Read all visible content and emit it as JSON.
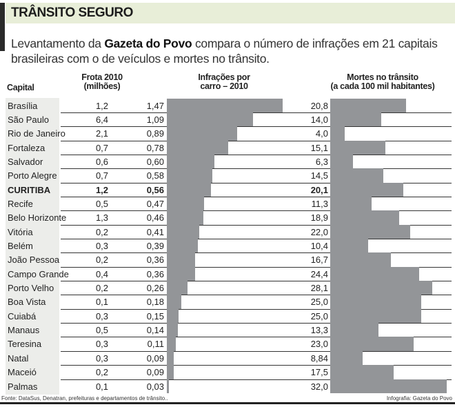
{
  "title": "TRÂNSITO SEGURO",
  "subtitle": {
    "pre": "Levantamento da ",
    "bold": "Gazeta do Povo",
    "post": " compara o número de infrações em 21 capitais brasileiras com o de veículos e mortes no trânsito."
  },
  "footer": {
    "source": "Fonte: DataSus, Denatran, prefeituras e departamentos de trânsito..",
    "credit": "Infografia: Gazeta do Povo"
  },
  "chart_data": {
    "type": "table",
    "columns": [
      "Capital",
      "Frota 2010 (milhões)",
      "Infrações por carro – 2010",
      "Mortes no trânsito (a cada 100 mil habitantes)"
    ],
    "headers": {
      "capital": "Capital",
      "frota1": "Frota 2010",
      "frota2": "(milhões)",
      "infr1": "Infrações por",
      "infr2": "carro – 2010",
      "mortes1": "Mortes no trânsito",
      "mortes2": "(a cada 100 mil habitantes)"
    },
    "highlight": "CURITIBA",
    "bar_color": "#939598",
    "rows": [
      [
        "Brasília",
        "1,2",
        "1,47",
        "20,8"
      ],
      [
        "São Paulo",
        "6,4",
        "1,09",
        "14,0"
      ],
      [
        "Rio de Janeiro",
        "2,1",
        "0,89",
        "4,0"
      ],
      [
        "Fortaleza",
        "0,7",
        "0,78",
        "15,1"
      ],
      [
        "Salvador",
        "0,6",
        "0,60",
        "6,3"
      ],
      [
        "Porto Alegre",
        "0,7",
        "0,58",
        "14,5"
      ],
      [
        "CURITIBA",
        "1,2",
        "0,56",
        "20,1"
      ],
      [
        "Recife",
        "0,5",
        "0,47",
        "11,3"
      ],
      [
        "Belo Horizonte",
        "1,3",
        "0,46",
        "18,9"
      ],
      [
        "Vitória",
        "0,2",
        "0,41",
        "22,0"
      ],
      [
        "Belém",
        "0,3",
        "0,39",
        "10,4"
      ],
      [
        "João Pessoa",
        "0,2",
        "0,36",
        "16,7"
      ],
      [
        "Campo Grande",
        "0,4",
        "0,36",
        "24,4"
      ],
      [
        "Porto Velho",
        "0,2",
        "0,26",
        "28,1"
      ],
      [
        "Boa Vista",
        "0,1",
        "0,18",
        "25,0"
      ],
      [
        "Cuiabá",
        "0,3",
        "0,15",
        "25,0"
      ],
      [
        "Manaus",
        "0,5",
        "0,14",
        "13,3"
      ],
      [
        "Teresina",
        "0,3",
        "0,11",
        "23,0"
      ],
      [
        "Natal",
        "0,3",
        "0,09",
        "8,84"
      ],
      [
        "Maceió",
        "0,2",
        "0,09",
        "17,5"
      ],
      [
        "Palmas",
        "0,1",
        "0,03",
        "32,0"
      ]
    ]
  }
}
